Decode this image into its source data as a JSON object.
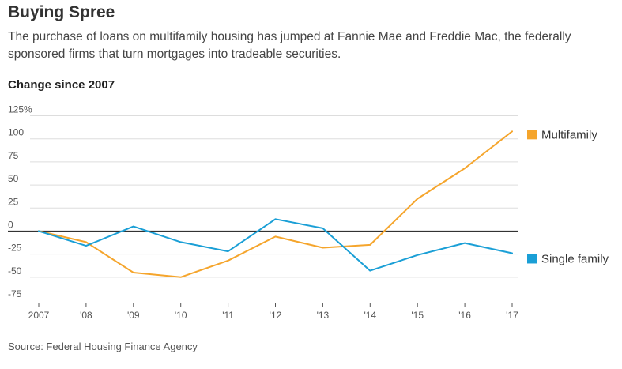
{
  "header": {
    "title": "Buying Spree",
    "subtitle": "The purchase of loans on multifamily housing has jumped at Fannie Mae and Freddie Mac, the federally sponsored firms that turn mortgages into tradeable securities."
  },
  "source": "Source: Federal Housing Finance Agency",
  "colors": {
    "multifamily": "#f5a52c",
    "single_family": "#1a9fd6",
    "grid": "#dddddd",
    "zero_line": "#333333"
  },
  "chart_data": {
    "type": "line",
    "title": "Change since 2007",
    "xlabel": "",
    "ylabel": "",
    "x": [
      "2007",
      "'08",
      "'09",
      "'10",
      "'11",
      "'12",
      "'13",
      "'14",
      "'15",
      "'16",
      "'17"
    ],
    "y_ticks": [
      125,
      100,
      75,
      50,
      25,
      0,
      -25,
      -50,
      -75
    ],
    "y_tick_labels": [
      "125%",
      "100",
      "75",
      "50",
      "25",
      "0",
      "-25",
      "-50",
      "-75"
    ],
    "ylim": [
      -75,
      125
    ],
    "grid": true,
    "series": [
      {
        "name": "Multifamily",
        "color": "#f5a52c",
        "values": [
          0,
          -12,
          -45,
          -50,
          -32,
          -6,
          -18,
          -15,
          35,
          68,
          108
        ]
      },
      {
        "name": "Single family",
        "color": "#1a9fd6",
        "values": [
          0,
          -16,
          5,
          -12,
          -22,
          13,
          3,
          -43,
          -26,
          -13,
          -24
        ]
      }
    ],
    "legend": "right"
  }
}
